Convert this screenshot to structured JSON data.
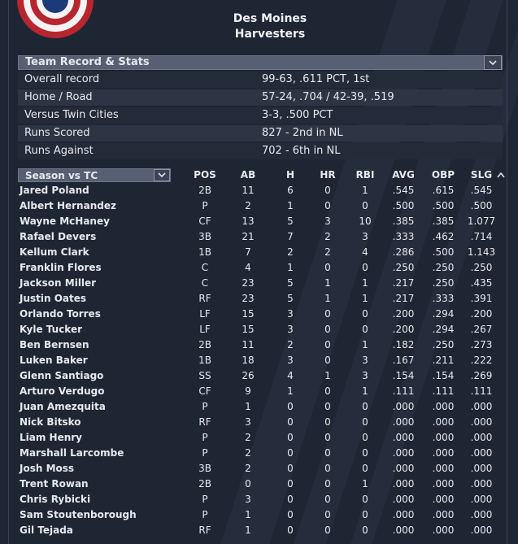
{
  "team": {
    "line1": "Des Moines",
    "line2": "Harvesters"
  },
  "team_record": {
    "title": "Team Record & Stats",
    "rows": [
      {
        "label": "Overall record",
        "value": "99-63, .611 PCT, 1st"
      },
      {
        "label": "Home / Road",
        "value": "57-24, .704 / 42-39, .519"
      },
      {
        "label": "Versus Twin Cities",
        "value": "3-3, .500 PCT"
      },
      {
        "label": "Runs Scored",
        "value": "827 - 2nd  in NL"
      },
      {
        "label": "Runs Against",
        "value": "702 - 6th  in NL"
      }
    ]
  },
  "roster": {
    "filter_label": "Season vs TC",
    "columns": {
      "pos": "POS",
      "ab": "AB",
      "h": "H",
      "hr": "HR",
      "rbi": "RBI",
      "avg": "AVG",
      "obp": "OBP",
      "slg": "SLG"
    },
    "players": [
      {
        "name": "Jared Poland",
        "pos": "2B",
        "ab": "11",
        "h": "6",
        "hr": "0",
        "rbi": "1",
        "avg": ".545",
        "obp": ".615",
        "slg": ".545"
      },
      {
        "name": "Albert Hernandez",
        "pos": "P",
        "ab": "2",
        "h": "1",
        "hr": "0",
        "rbi": "0",
        "avg": ".500",
        "obp": ".500",
        "slg": ".500"
      },
      {
        "name": "Wayne McHaney",
        "pos": "CF",
        "ab": "13",
        "h": "5",
        "hr": "3",
        "rbi": "10",
        "avg": ".385",
        "obp": ".385",
        "slg": "1.077"
      },
      {
        "name": "Rafael Devers",
        "pos": "3B",
        "ab": "21",
        "h": "7",
        "hr": "2",
        "rbi": "3",
        "avg": ".333",
        "obp": ".462",
        "slg": ".714"
      },
      {
        "name": "Kellum Clark",
        "pos": "1B",
        "ab": "7",
        "h": "2",
        "hr": "2",
        "rbi": "4",
        "avg": ".286",
        "obp": ".500",
        "slg": "1.143"
      },
      {
        "name": "Franklin Flores",
        "pos": "C",
        "ab": "4",
        "h": "1",
        "hr": "0",
        "rbi": "0",
        "avg": ".250",
        "obp": ".250",
        "slg": ".250"
      },
      {
        "name": "Jackson Miller",
        "pos": "C",
        "ab": "23",
        "h": "5",
        "hr": "1",
        "rbi": "1",
        "avg": ".217",
        "obp": ".250",
        "slg": ".435"
      },
      {
        "name": "Justin Oates",
        "pos": "RF",
        "ab": "23",
        "h": "5",
        "hr": "1",
        "rbi": "1",
        "avg": ".217",
        "obp": ".333",
        "slg": ".391"
      },
      {
        "name": "Orlando Torres",
        "pos": "LF",
        "ab": "15",
        "h": "3",
        "hr": "0",
        "rbi": "0",
        "avg": ".200",
        "obp": ".294",
        "slg": ".200"
      },
      {
        "name": "Kyle Tucker",
        "pos": "LF",
        "ab": "15",
        "h": "3",
        "hr": "0",
        "rbi": "0",
        "avg": ".200",
        "obp": ".294",
        "slg": ".267"
      },
      {
        "name": "Ben Bernsen",
        "pos": "2B",
        "ab": "11",
        "h": "2",
        "hr": "0",
        "rbi": "1",
        "avg": ".182",
        "obp": ".250",
        "slg": ".273"
      },
      {
        "name": "Luken Baker",
        "pos": "1B",
        "ab": "18",
        "h": "3",
        "hr": "0",
        "rbi": "3",
        "avg": ".167",
        "obp": ".211",
        "slg": ".222"
      },
      {
        "name": "Glenn Santiago",
        "pos": "SS",
        "ab": "26",
        "h": "4",
        "hr": "1",
        "rbi": "3",
        "avg": ".154",
        "obp": ".154",
        "slg": ".269"
      },
      {
        "name": "Arturo Verdugo",
        "pos": "CF",
        "ab": "9",
        "h": "1",
        "hr": "0",
        "rbi": "1",
        "avg": ".111",
        "obp": ".111",
        "slg": ".111"
      },
      {
        "name": "Juan Amezquita",
        "pos": "P",
        "ab": "1",
        "h": "0",
        "hr": "0",
        "rbi": "0",
        "avg": ".000",
        "obp": ".000",
        "slg": ".000"
      },
      {
        "name": "Nick Bitsko",
        "pos": "RF",
        "ab": "3",
        "h": "0",
        "hr": "0",
        "rbi": "0",
        "avg": ".000",
        "obp": ".000",
        "slg": ".000"
      },
      {
        "name": "Liam Henry",
        "pos": "P",
        "ab": "2",
        "h": "0",
        "hr": "0",
        "rbi": "0",
        "avg": ".000",
        "obp": ".000",
        "slg": ".000"
      },
      {
        "name": "Marshall Larcombe",
        "pos": "P",
        "ab": "2",
        "h": "0",
        "hr": "0",
        "rbi": "0",
        "avg": ".000",
        "obp": ".000",
        "slg": ".000"
      },
      {
        "name": "Josh Moss",
        "pos": "3B",
        "ab": "2",
        "h": "0",
        "hr": "0",
        "rbi": "0",
        "avg": ".000",
        "obp": ".000",
        "slg": ".000"
      },
      {
        "name": "Trent Rowan",
        "pos": "2B",
        "ab": "0",
        "h": "0",
        "hr": "0",
        "rbi": "1",
        "avg": ".000",
        "obp": ".000",
        "slg": ".000"
      },
      {
        "name": "Chris Rybicki",
        "pos": "P",
        "ab": "3",
        "h": "0",
        "hr": "0",
        "rbi": "0",
        "avg": ".000",
        "obp": ".000",
        "slg": ".000"
      },
      {
        "name": "Sam Stoutenborough",
        "pos": "P",
        "ab": "1",
        "h": "0",
        "hr": "0",
        "rbi": "0",
        "avg": ".000",
        "obp": ".000",
        "slg": ".000"
      },
      {
        "name": "Gil Tejada",
        "pos": "RF",
        "ab": "1",
        "h": "0",
        "hr": "0",
        "rbi": "0",
        "avg": ".000",
        "obp": ".000",
        "slg": ".000"
      }
    ]
  },
  "icons": {
    "dropdown": "chevron-down-icon",
    "scroll": "scroll-up-icon",
    "decoration": "bunting-icon"
  }
}
